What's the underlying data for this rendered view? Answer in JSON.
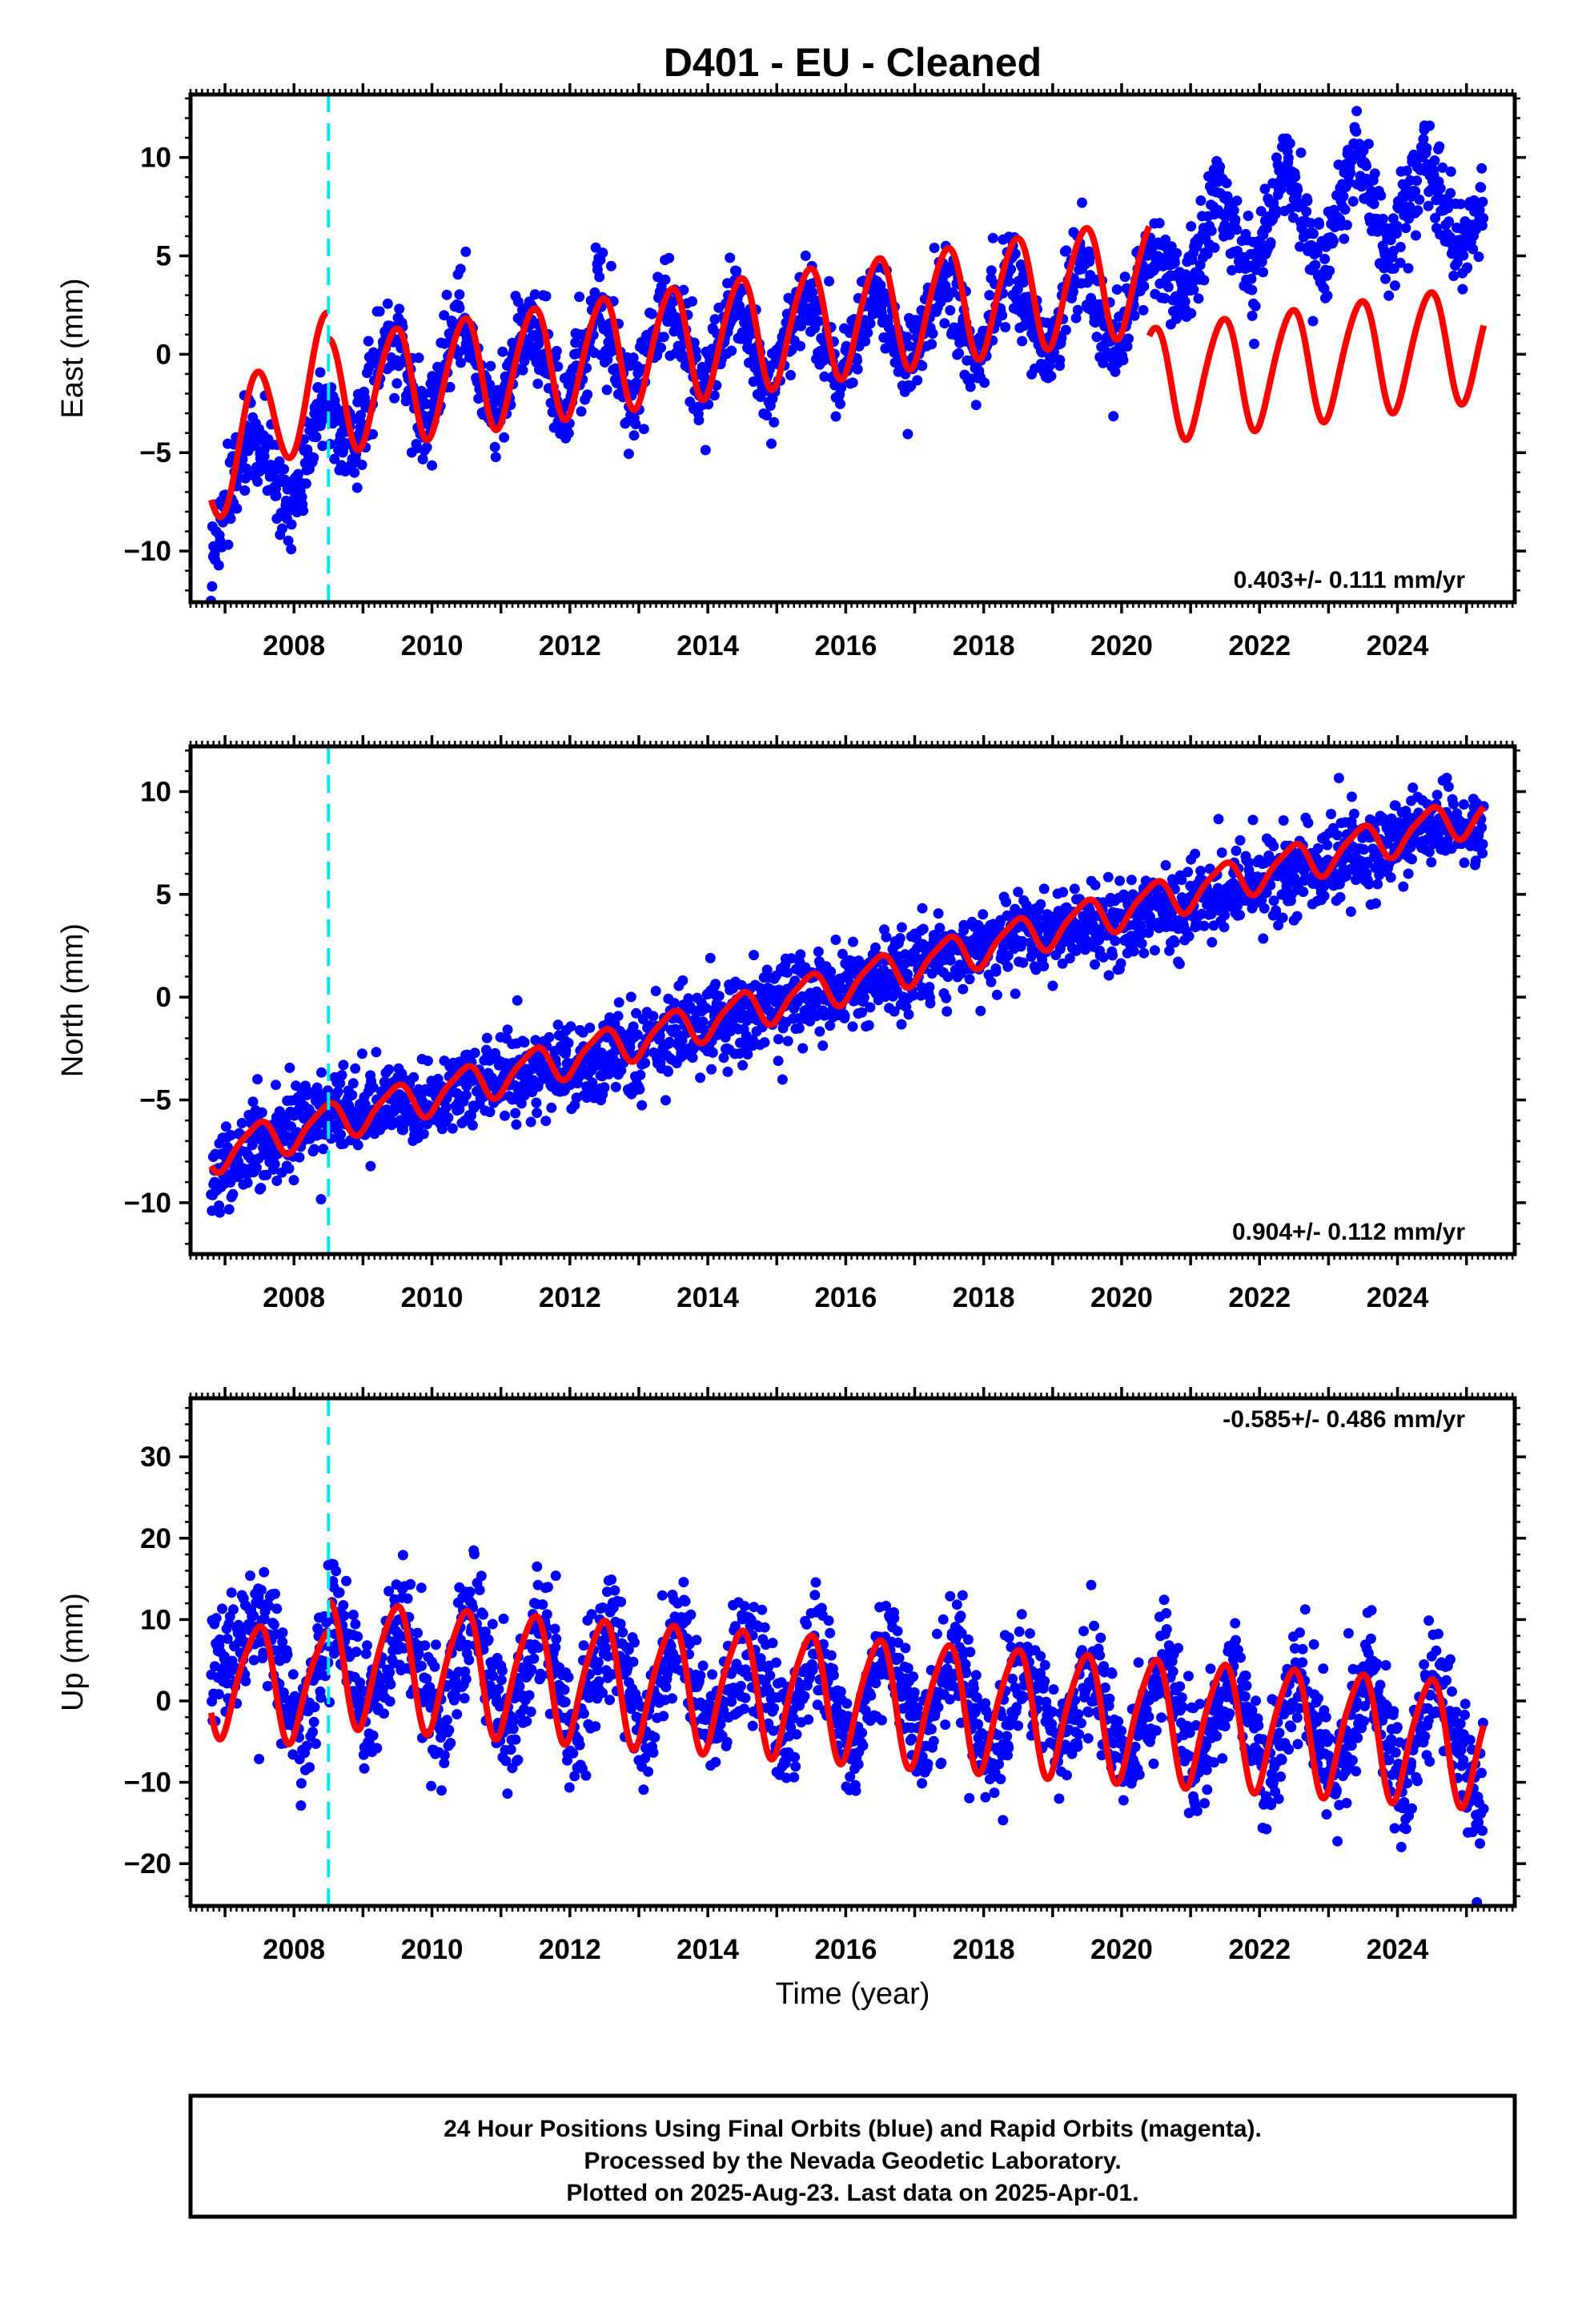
{
  "title": "D401  - EU - Cleaned",
  "xlabel": "Time (year)",
  "colors": {
    "final_orbits": "#0000ff",
    "model": "#ff0000",
    "marker": "#00e5ee"
  },
  "footer": [
    "24 Hour Positions Using Final Orbits (blue) and Rapid Orbits (magenta).",
    "Processed by the Nevada Geodetic Laboratory.",
    "Plotted on 2025-Aug-23. Last data on 2025-Apr-01."
  ],
  "chart_data": [
    {
      "type": "scatter",
      "ylabel": "East (mm)",
      "xlim": [
        2006.5,
        2025.7
      ],
      "ylim": [
        -12.6,
        13.2
      ],
      "yticks": [
        -10,
        -5,
        0,
        5,
        10
      ],
      "ytick_labels": [
        "−10",
        "−5",
        "0",
        "5",
        "10"
      ],
      "xticks": [
        2008,
        2010,
        2012,
        2014,
        2016,
        2018,
        2020,
        2022,
        2024
      ],
      "xtick_labels": [
        "2008",
        "2010",
        "2012",
        "2014",
        "2016",
        "2018",
        "2020",
        "2022",
        "2024"
      ],
      "rate_text": "0.403+/- 0.111 mm/yr",
      "rate_position": "bottom-right",
      "equipment_change": 2008.5,
      "data_range": [
        2006.8,
        2025.25
      ],
      "series": [
        {
          "kind": "points",
          "x": [
            2006.85,
            2007.4,
            2007.9,
            2008.4,
            2008.9,
            2009.4,
            2009.9,
            2010.4,
            2010.9,
            2011.4,
            2011.9,
            2012.4,
            2012.9,
            2013.4,
            2013.9,
            2014.4,
            2014.9,
            2015.4,
            2015.9,
            2016.4,
            2016.9,
            2017.4,
            2017.9,
            2018.4,
            2018.9,
            2019.4,
            2019.9,
            2020.4,
            2020.9,
            2021.4,
            2021.9,
            2022.4,
            2022.9,
            2023.4,
            2023.9,
            2024.4,
            2024.9,
            2025.2
          ],
          "y": [
            -9.5,
            -3.5,
            -8.5,
            -2.5,
            -4.0,
            1.5,
            -3.5,
            2.0,
            -3.5,
            2.0,
            -3.0,
            2.5,
            -2.5,
            3.0,
            -2.0,
            3.0,
            -2.0,
            3.5,
            -1.5,
            3.5,
            -1.0,
            4.0,
            -1.0,
            4.5,
            -0.5,
            5.0,
            0.0,
            5.5,
            3.0,
            8.5,
            3.5,
            10.0,
            4.0,
            10.5,
            5.0,
            10.5,
            5.0,
            7.5
          ],
          "scatter_sd": 1.1
        },
        {
          "kind": "model",
          "components": [
            {
              "from": 2006.8,
              "to": 2008.5,
              "offset": -5.8,
              "rate": 3.0,
              "annual": 2.9,
              "semiannual": 0.0
            },
            {
              "from": 2008.5,
              "to": 2020.4,
              "offset": -2.0,
              "rate": 0.51,
              "annual": 2.9,
              "semiannual": 0.3
            },
            {
              "from": 2020.4,
              "to": 2025.25,
              "offset": -1.5,
              "rate": 0.45,
              "annual": 2.9,
              "semiannual": 0.3
            }
          ]
        }
      ]
    },
    {
      "type": "scatter",
      "ylabel": "North (mm)",
      "xlim": [
        2006.5,
        2025.7
      ],
      "ylim": [
        -12.5,
        12.2
      ],
      "yticks": [
        -10,
        -5,
        0,
        5,
        10
      ],
      "ytick_labels": [
        "−10",
        "−5",
        "0",
        "5",
        "10"
      ],
      "xticks": [
        2008,
        2010,
        2012,
        2014,
        2016,
        2018,
        2020,
        2022,
        2024
      ],
      "xtick_labels": [
        "2008",
        "2010",
        "2012",
        "2014",
        "2016",
        "2018",
        "2020",
        "2022",
        "2024"
      ],
      "rate_text": "0.904+/- 0.112 mm/yr",
      "rate_position": "bottom-right",
      "equipment_change": 2008.5,
      "data_range": [
        2006.8,
        2025.25
      ],
      "series": [
        {
          "kind": "points",
          "x": [
            2006.85,
            2007.5,
            2008.5,
            2009.5,
            2010.5,
            2011.5,
            2012.5,
            2013.5,
            2014.5,
            2015.5,
            2016.5,
            2017.5,
            2018.5,
            2019.5,
            2020.5,
            2021.5,
            2022.5,
            2023.5,
            2024.5,
            2025.2
          ],
          "y": [
            -8.5,
            -7.0,
            -5.5,
            -5.5,
            -4.5,
            -3.5,
            -3.0,
            -2.0,
            -1.0,
            0.0,
            1.0,
            2.0,
            3.0,
            3.5,
            4.0,
            5.0,
            6.0,
            7.0,
            8.5,
            8.0
          ],
          "scatter_sd": 1.0
        },
        {
          "kind": "model",
          "components": [
            {
              "from": 2006.8,
              "to": 2025.25,
              "offset": -7.6,
              "rate": 0.9,
              "annual": 0.9,
              "semiannual": 0.2
            }
          ]
        }
      ]
    },
    {
      "type": "scatter",
      "ylabel": "Up (mm)",
      "xlim": [
        2006.5,
        2025.7
      ],
      "ylim": [
        -25.2,
        37.2
      ],
      "yticks": [
        -20,
        -10,
        0,
        10,
        20,
        30
      ],
      "ytick_labels": [
        "−20",
        "−10",
        "0",
        "10",
        "20",
        "30"
      ],
      "xticks": [
        2008,
        2010,
        2012,
        2014,
        2016,
        2018,
        2020,
        2022,
        2024
      ],
      "xtick_labels": [
        "2008",
        "2010",
        "2012",
        "2014",
        "2016",
        "2018",
        "2020",
        "2022",
        "2024"
      ],
      "rate_text": "-0.585+/- 0.486 mm/yr",
      "rate_position": "top-right",
      "equipment_change": 2008.5,
      "data_range": [
        2006.8,
        2025.25
      ],
      "series": [
        {
          "kind": "points",
          "x": [
            2006.85,
            2007.6,
            2008.1,
            2008.6,
            2009.1,
            2009.6,
            2010.1,
            2010.6,
            2011.1,
            2011.6,
            2012.1,
            2012.6,
            2013.1,
            2013.6,
            2014.1,
            2014.6,
            2015.1,
            2015.6,
            2016.1,
            2016.6,
            2017.1,
            2017.6,
            2018.1,
            2018.6,
            2019.1,
            2019.6,
            2020.1,
            2020.6,
            2021.1,
            2021.6,
            2022.1,
            2022.6,
            2023.1,
            2023.6,
            2024.1,
            2024.6,
            2025.1
          ],
          "y": [
            4,
            10,
            -5,
            12,
            -3,
            11,
            -3,
            11,
            -4,
            10,
            -4,
            10,
            -5,
            9,
            -5,
            9,
            -6,
            8,
            -6,
            8,
            -7,
            7,
            -7,
            6,
            -8,
            6,
            -9,
            5,
            -9,
            5,
            -10,
            4,
            -10,
            4,
            -11,
            3,
            -11
          ],
          "scatter_sd": 3.6
        },
        {
          "kind": "model",
          "components": [
            {
              "from": 2006.8,
              "to": 2008.5,
              "offset": 3.0,
              "rate": -0.6,
              "annual": 6.8,
              "semiannual": 1.2
            },
            {
              "from": 2008.5,
              "to": 2025.25,
              "offset": 5.0,
              "rate": -0.6,
              "annual": 7.5,
              "semiannual": 1.2
            }
          ]
        }
      ]
    }
  ]
}
